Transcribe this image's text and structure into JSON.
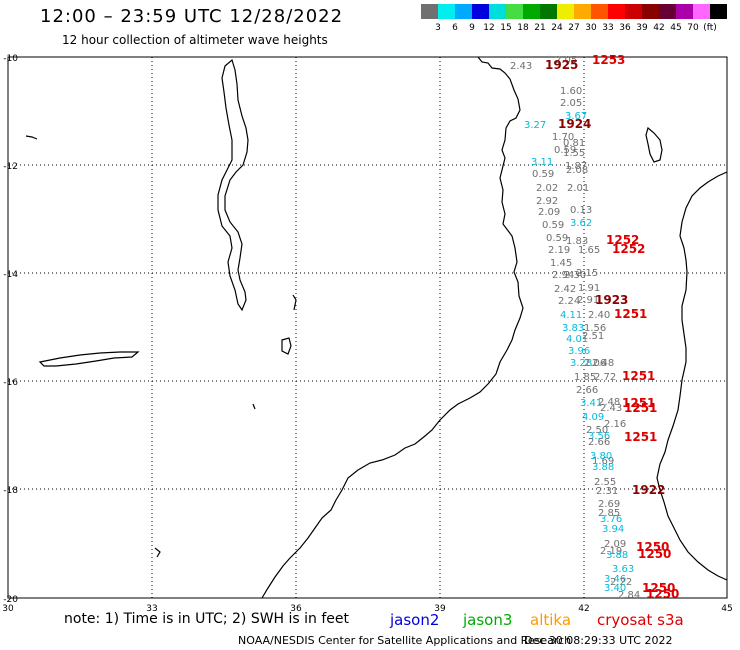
{
  "header": {
    "title": "12:00 – 23:59 UTC 12/28/2022",
    "subtitle": "12 hour collection of altimeter wave heights"
  },
  "legend": {
    "colors": [
      "#707070",
      "#00eeee",
      "#00aaff",
      "#0000dd",
      "#00dddd",
      "#44dd44",
      "#00aa00",
      "#007700",
      "#eeee00",
      "#ffaa00",
      "#ff5500",
      "#ff0000",
      "#cc0000",
      "#880000",
      "#660033",
      "#aa00aa",
      "#ff66ff",
      "#000000"
    ],
    "labels": [
      "3",
      "6",
      "9",
      "12",
      "15",
      "18",
      "21",
      "24",
      "27",
      "30",
      "33",
      "36",
      "39",
      "42",
      "45",
      "70",
      "(ft)"
    ]
  },
  "axes": {
    "lat_labels": [
      "-10",
      "-12",
      "-14",
      "-16",
      "-18",
      "-20"
    ],
    "lon_labels": [
      "30",
      "33",
      "36",
      "39",
      "42",
      "45"
    ]
  },
  "points": [
    {
      "t": "2.43",
      "c": "#707070"
    },
    {
      "t": "2.05",
      "c": "#707070"
    },
    {
      "t": "1925",
      "c": "#8b0000"
    },
    {
      "t": "1253",
      "c": "#dd0000"
    },
    {
      "t": "1.60",
      "c": "#707070"
    },
    {
      "t": "2.05",
      "c": "#707070"
    },
    {
      "t": "3.67",
      "c": "#00bbdd"
    },
    {
      "t": "3.27",
      "c": "#00bbdd"
    },
    {
      "t": "1924",
      "c": "#8b0000"
    },
    {
      "t": "1.70",
      "c": "#707070"
    },
    {
      "t": "0.81",
      "c": "#707070"
    },
    {
      "t": "0.59",
      "c": "#707070"
    },
    {
      "t": "1.55",
      "c": "#707070"
    },
    {
      "t": "3.11",
      "c": "#00bbdd"
    },
    {
      "t": "1.87",
      "c": "#707070"
    },
    {
      "t": "0.59",
      "c": "#707070"
    },
    {
      "t": "2.08",
      "c": "#707070"
    },
    {
      "t": "2.02",
      "c": "#707070"
    },
    {
      "t": "2.01",
      "c": "#707070"
    },
    {
      "t": "2.92",
      "c": "#707070"
    },
    {
      "t": "2.09",
      "c": "#707070"
    },
    {
      "t": "0.13",
      "c": "#707070"
    },
    {
      "t": "0.59",
      "c": "#707070"
    },
    {
      "t": "3.62",
      "c": "#00bbdd"
    },
    {
      "t": "0.59",
      "c": "#707070"
    },
    {
      "t": "1.83",
      "c": "#707070"
    },
    {
      "t": "1252",
      "c": "#dd0000"
    },
    {
      "t": "2.19",
      "c": "#707070"
    },
    {
      "t": "1.65",
      "c": "#707070"
    },
    {
      "t": "1252",
      "c": "#dd0000"
    },
    {
      "t": "1.45",
      "c": "#707070"
    },
    {
      "t": "2.15",
      "c": "#707070"
    },
    {
      "t": "2.94",
      "c": "#707070"
    },
    {
      "t": "2.30",
      "c": "#707070"
    },
    {
      "t": "1.91",
      "c": "#707070"
    },
    {
      "t": "2.42",
      "c": "#707070"
    },
    {
      "t": "2.91",
      "c": "#707070"
    },
    {
      "t": "2.24",
      "c": "#707070"
    },
    {
      "t": "1923",
      "c": "#8b0000"
    },
    {
      "t": "4.11",
      "c": "#00bbdd"
    },
    {
      "t": "2.40",
      "c": "#707070"
    },
    {
      "t": "1251",
      "c": "#dd0000"
    },
    {
      "t": "3.83",
      "c": "#00bbdd"
    },
    {
      "t": "1.56",
      "c": "#707070"
    },
    {
      "t": "4.01",
      "c": "#00bbdd"
    },
    {
      "t": "2.51",
      "c": "#707070"
    },
    {
      "t": "3.96",
      "c": "#00bbdd"
    },
    {
      "t": "3.28",
      "c": "#00bbdd"
    },
    {
      "t": "2.48",
      "c": "#707070"
    },
    {
      "t": "2.06",
      "c": "#707070"
    },
    {
      "t": "1.85",
      "c": "#707070"
    },
    {
      "t": "2.72",
      "c": "#707070"
    },
    {
      "t": "1251",
      "c": "#dd0000"
    },
    {
      "t": "2.66",
      "c": "#707070"
    },
    {
      "t": "2.48",
      "c": "#707070"
    },
    {
      "t": "3.41",
      "c": "#00bbdd"
    },
    {
      "t": "2.43",
      "c": "#707070"
    },
    {
      "t": "1251",
      "c": "#dd0000"
    },
    {
      "t": "1251",
      "c": "#dd0000"
    },
    {
      "t": "4.09",
      "c": "#00bbdd"
    },
    {
      "t": "2.16",
      "c": "#707070"
    },
    {
      "t": "2.50",
      "c": "#707070"
    },
    {
      "t": "3.56",
      "c": "#00bbdd"
    },
    {
      "t": "2.66",
      "c": "#707070"
    },
    {
      "t": "1251",
      "c": "#dd0000"
    },
    {
      "t": "3.80",
      "c": "#00bbdd"
    },
    {
      "t": "1.69",
      "c": "#707070"
    },
    {
      "t": "3.88",
      "c": "#00bbdd"
    },
    {
      "t": "2.55",
      "c": "#707070"
    },
    {
      "t": "2.31",
      "c": "#707070"
    },
    {
      "t": "1922",
      "c": "#8b0000"
    },
    {
      "t": "2.69",
      "c": "#707070"
    },
    {
      "t": "2.85",
      "c": "#707070"
    },
    {
      "t": "3.76",
      "c": "#00bbdd"
    },
    {
      "t": "3.94",
      "c": "#00bbdd"
    },
    {
      "t": "2.09",
      "c": "#707070"
    },
    {
      "t": "2.19",
      "c": "#707070"
    },
    {
      "t": "3.88",
      "c": "#00bbdd"
    },
    {
      "t": "1250",
      "c": "#dd0000"
    },
    {
      "t": "1250",
      "c": "#dd0000"
    },
    {
      "t": "3.63",
      "c": "#00bbdd"
    },
    {
      "t": "3.46",
      "c": "#00bbdd"
    },
    {
      "t": "2.22",
      "c": "#707070"
    },
    {
      "t": "3.40",
      "c": "#00bbdd"
    },
    {
      "t": "2.84",
      "c": "#707070"
    },
    {
      "t": "1250",
      "c": "#dd0000"
    },
    {
      "t": "1250",
      "c": "#dd0000"
    }
  ],
  "footer": {
    "note": "note: 1) Time is in UTC; 2) SWH is in feet",
    "satellites": [
      {
        "name": "jason2",
        "color": "#0000dd"
      },
      {
        "name": "jason3",
        "color": "#00aa00"
      },
      {
        "name": "altika",
        "color": "#ff9900"
      },
      {
        "name": "cryosat s3a",
        "color": "#dd0000"
      }
    ],
    "credit": "NOAA/NESDIS Center for Satellite Applications and Research",
    "timestamp": "Dec 30 08:29:33 UTC 2022"
  }
}
